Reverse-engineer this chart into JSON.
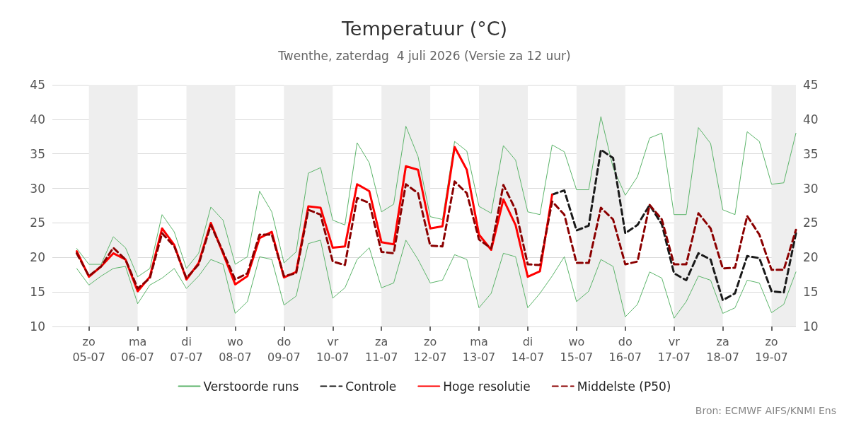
{
  "chart_data": {
    "type": "line",
    "title": "Temperatuur (°C)",
    "subtitle": "Twenthe, zaterdag  4 juli 2026 (Versie za 12 uur)",
    "annotations": [
      "Bron: ECMWF AIFS/KNMI Ens"
    ],
    "x": [
      "2026-07-04T18:00",
      "2026-07-05T00:00",
      "2026-07-05T06:00",
      "2026-07-05T12:00",
      "2026-07-05T18:00",
      "2026-07-06T00:00",
      "2026-07-06T06:00",
      "2026-07-06T12:00",
      "2026-07-06T18:00",
      "2026-07-07T00:00",
      "2026-07-07T06:00",
      "2026-07-07T12:00",
      "2026-07-07T18:00",
      "2026-07-08T00:00",
      "2026-07-08T06:00",
      "2026-07-08T12:00",
      "2026-07-08T18:00",
      "2026-07-09T00:00",
      "2026-07-09T06:00",
      "2026-07-09T12:00",
      "2026-07-09T18:00",
      "2026-07-10T00:00",
      "2026-07-10T06:00",
      "2026-07-10T12:00",
      "2026-07-10T18:00",
      "2026-07-11T00:00",
      "2026-07-11T06:00",
      "2026-07-11T12:00",
      "2026-07-11T18:00",
      "2026-07-12T00:00",
      "2026-07-12T06:00",
      "2026-07-12T12:00",
      "2026-07-12T18:00",
      "2026-07-13T00:00",
      "2026-07-13T06:00",
      "2026-07-13T12:00",
      "2026-07-13T18:00",
      "2026-07-14T00:00",
      "2026-07-14T06:00",
      "2026-07-14T12:00",
      "2026-07-14T18:00",
      "2026-07-15T00:00",
      "2026-07-15T06:00",
      "2026-07-15T12:00",
      "2026-07-15T18:00",
      "2026-07-16T00:00",
      "2026-07-16T06:00",
      "2026-07-16T12:00",
      "2026-07-16T18:00",
      "2026-07-17T00:00",
      "2026-07-17T06:00",
      "2026-07-17T12:00",
      "2026-07-17T18:00",
      "2026-07-18T00:00",
      "2026-07-18T06:00",
      "2026-07-18T12:00",
      "2026-07-18T18:00",
      "2026-07-19T00:00",
      "2026-07-19T06:00",
      "2026-07-19T12:00"
    ],
    "series": [
      {
        "name": "Verstoorde runs",
        "color": "#5cb46a",
        "line_style": "solid",
        "values": [
          21.3,
          19.0,
          19.0,
          23.0,
          21.4,
          17.2,
          18.4,
          26.2,
          23.7,
          18.4,
          20.6,
          27.3,
          25.4,
          19.0,
          20.1,
          29.6,
          26.6,
          19.2,
          20.8,
          32.2,
          33.0,
          25.4,
          24.7,
          36.6,
          33.7,
          26.6,
          27.7,
          39.0,
          34.6,
          25.9,
          25.5,
          36.8,
          35.4,
          27.4,
          26.4,
          36.2,
          34.1,
          26.6,
          26.2,
          36.3,
          35.3,
          29.8,
          29.8,
          40.4,
          33.0,
          29.0,
          31.7,
          37.3,
          38.0,
          26.2,
          26.2,
          38.8,
          36.5,
          26.9,
          26.2,
          38.2,
          36.8,
          30.6,
          30.8,
          38.0
        ]
      },
      {
        "color": "#5cb46a",
        "line_style": "solid",
        "values": [
          18.4,
          16.0,
          17.3,
          18.4,
          18.7,
          13.3,
          16.0,
          17.0,
          18.4,
          15.5,
          17.3,
          19.7,
          19.0,
          11.9,
          13.6,
          20.1,
          19.7,
          13.1,
          14.4,
          22.0,
          22.5,
          14.1,
          15.6,
          19.7,
          21.4,
          15.6,
          16.3,
          22.5,
          19.7,
          16.3,
          16.7,
          20.4,
          19.7,
          12.7,
          14.8,
          20.6,
          20.1,
          12.7,
          14.8,
          17.3,
          20.1,
          13.6,
          15.1,
          19.7,
          18.7,
          11.4,
          13.2,
          17.9,
          17.0,
          11.2,
          13.6,
          17.3,
          16.7,
          11.9,
          12.7,
          16.7,
          16.3,
          12.0,
          13.2,
          17.9
        ]
      },
      {
        "name": "Controle",
        "color": "#1a1a1a",
        "line_style": "dashed",
        "values": [
          null,
          null,
          null,
          null,
          null,
          null,
          null,
          null,
          null,
          null,
          null,
          null,
          null,
          null,
          null,
          null,
          null,
          null,
          null,
          null,
          null,
          null,
          null,
          null,
          null,
          null,
          null,
          null,
          null,
          null,
          null,
          null,
          null,
          null,
          null,
          null,
          null,
          null,
          null,
          29.1,
          29.7,
          23.9,
          24.6,
          35.6,
          34.4,
          23.5,
          24.7,
          27.6,
          24.8,
          17.7,
          16.7,
          20.6,
          19.7,
          13.8,
          14.8,
          20.2,
          19.9,
          15.1,
          14.9,
          23.5
        ]
      },
      {
        "name": "Hoge resolutie",
        "color": "#ff0000",
        "line_style": "solid",
        "values": [
          20.9,
          17.2,
          18.7,
          20.6,
          19.7,
          15.1,
          17.2,
          24.2,
          21.8,
          16.8,
          19.2,
          25.0,
          20.6,
          16.1,
          17.3,
          22.8,
          23.7,
          17.1,
          17.9,
          27.4,
          27.2,
          21.4,
          21.6,
          30.6,
          29.6,
          22.2,
          21.9,
          33.2,
          32.7,
          24.2,
          24.5,
          36.0,
          32.7,
          23.3,
          21.1,
          28.4,
          24.7,
          17.2,
          18.0,
          29.1,
          null,
          null,
          null,
          null,
          null,
          null,
          null,
          null,
          null,
          null,
          null,
          null,
          null,
          null,
          null,
          null,
          null,
          null,
          null,
          null
        ]
      },
      {
        "name": "Middelste (P50)",
        "color": "#8b0000",
        "line_style": "dashed",
        "values": [
          20.6,
          17.3,
          18.7,
          21.4,
          19.7,
          15.5,
          17.0,
          23.5,
          21.6,
          17.0,
          19.0,
          24.7,
          20.8,
          16.8,
          17.7,
          23.3,
          23.3,
          17.3,
          17.7,
          26.9,
          26.2,
          19.4,
          18.9,
          28.6,
          27.9,
          20.8,
          20.6,
          30.6,
          29.3,
          21.7,
          21.6,
          31.0,
          29.3,
          22.6,
          21.3,
          30.5,
          26.9,
          19.0,
          18.9,
          28.1,
          26.2,
          19.2,
          19.2,
          27.2,
          25.5,
          19.0,
          19.4,
          27.6,
          25.5,
          19.0,
          19.0,
          26.4,
          24.2,
          18.4,
          18.5,
          26.0,
          23.3,
          18.2,
          18.2,
          24.0
        ]
      }
    ],
    "xlim": [
      "2026-07-04T06:00",
      "2026-07-19T12:00"
    ],
    "xticks": [
      {
        "value": "2026-07-05",
        "label": "zo\n05-07"
      },
      {
        "value": "2026-07-06",
        "label": "ma\n06-07"
      },
      {
        "value": "2026-07-07",
        "label": "di\n07-07"
      },
      {
        "value": "2026-07-08",
        "label": "wo\n08-07"
      },
      {
        "value": "2026-07-09",
        "label": "do\n09-07"
      },
      {
        "value": "2026-07-10",
        "label": "vr\n10-07"
      },
      {
        "value": "2026-07-11",
        "label": "za\n11-07"
      },
      {
        "value": "2026-07-12",
        "label": "zo\n12-07"
      },
      {
        "value": "2026-07-13",
        "label": "ma\n13-07"
      },
      {
        "value": "2026-07-14",
        "label": "di\n14-07"
      },
      {
        "value": "2026-07-15",
        "label": "wo\n15-07"
      },
      {
        "value": "2026-07-16",
        "label": "do\n16-07"
      },
      {
        "value": "2026-07-17",
        "label": "vr\n17-07"
      },
      {
        "value": "2026-07-18",
        "label": "za\n18-07"
      },
      {
        "value": "2026-07-19",
        "label": "zo\n19-07"
      }
    ],
    "ylim": [
      10,
      45
    ],
    "yticks": [
      10,
      15,
      20,
      25,
      30,
      35,
      40,
      45
    ],
    "y2lim": [
      10,
      45
    ],
    "y2ticks": [
      10,
      15,
      20,
      25,
      30,
      35,
      40,
      45
    ],
    "bands": [
      {
        "axis": "x",
        "from": "2026-07-05",
        "to": "2026-07-06",
        "color": "#eeeeee"
      },
      {
        "axis": "x",
        "from": "2026-07-07",
        "to": "2026-07-08",
        "color": "#eeeeee"
      },
      {
        "axis": "x",
        "from": "2026-07-09",
        "to": "2026-07-10",
        "color": "#eeeeee"
      },
      {
        "axis": "x",
        "from": "2026-07-11",
        "to": "2026-07-12",
        "color": "#eeeeee"
      },
      {
        "axis": "x",
        "from": "2026-07-13",
        "to": "2026-07-14",
        "color": "#eeeeee"
      },
      {
        "axis": "x",
        "from": "2026-07-15",
        "to": "2026-07-16",
        "color": "#eeeeee"
      },
      {
        "axis": "x",
        "from": "2026-07-17",
        "to": "2026-07-18",
        "color": "#eeeeee"
      },
      {
        "axis": "x",
        "from": "2026-07-19",
        "to": "2026-07-19T12:00",
        "color": "#eeeeee"
      }
    ],
    "grid": "y",
    "legend": "bottom",
    "marker": "none"
  }
}
